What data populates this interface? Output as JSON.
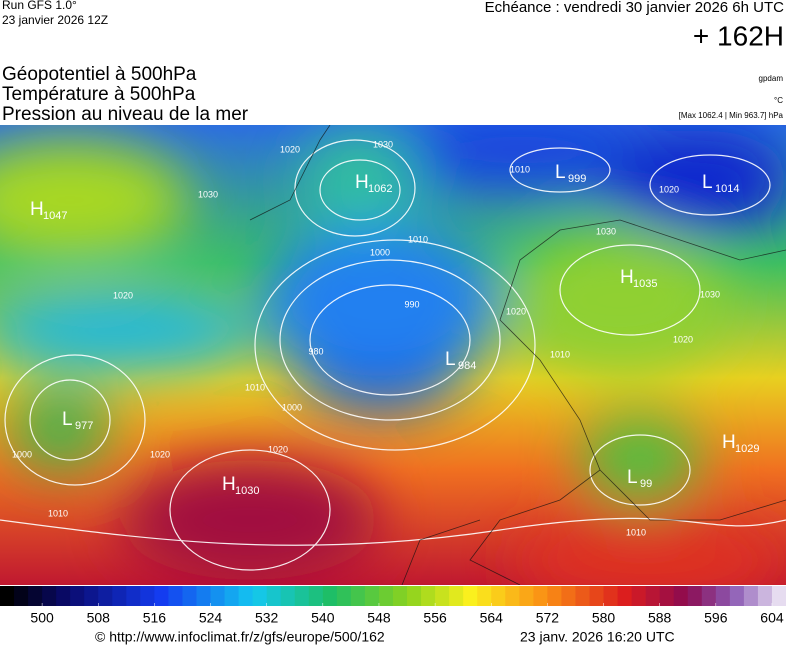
{
  "header": {
    "run": "Run GFS 1.0°",
    "run_date": "23 janvier 2026 12Z",
    "valid": "Echéance : vendredi 30 janvier 2026 6h UTC",
    "lead": "+ 162H",
    "fields": [
      "Géopotentiel à 500hPa",
      "Température à 500hPa",
      "Pression au niveau de la mer"
    ],
    "units": [
      "gpdam",
      "°C",
      "[Max 1062.4 | Min 963.7] hPa"
    ]
  },
  "pressure_centers": [
    {
      "letter": "H",
      "value": 1047
    },
    {
      "letter": "H",
      "value": 1062
    },
    {
      "letter": "L",
      "value": 999
    },
    {
      "letter": "L",
      "value": 1014
    },
    {
      "letter": "H",
      "value": 1035
    },
    {
      "letter": "L",
      "value": 984
    },
    {
      "letter": "L",
      "value": 977
    },
    {
      "letter": "H",
      "value": 1030
    },
    {
      "letter": "H",
      "value": 1029
    },
    {
      "letter": "L",
      "value": 99
    }
  ],
  "isobar_labels": [
    1020,
    1030,
    1030,
    1020,
    1010,
    1000,
    990,
    980,
    1000,
    1010,
    1020,
    1010,
    1020,
    1000,
    1010,
    1020,
    1030,
    1020,
    1030,
    1020,
    1010,
    1010
  ],
  "colorbar": {
    "range": [
      494,
      606
    ],
    "ticks": [
      500,
      508,
      516,
      524,
      532,
      540,
      548,
      556,
      564,
      572,
      580,
      588,
      596,
      604
    ]
  },
  "footer": {
    "source": "© http://www.infoclimat.fr/z/gfs/europe/500/162",
    "generated": "23 janv. 2026 16:20 UTC"
  }
}
